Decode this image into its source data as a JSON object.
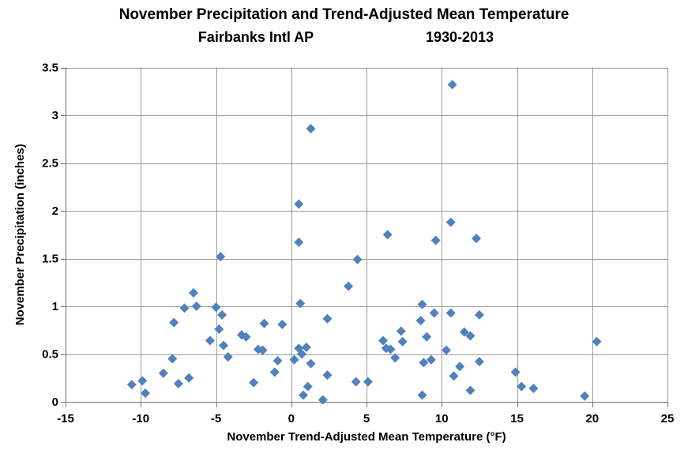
{
  "page": {
    "background": "#ffffff"
  },
  "chart_data": {
    "type": "scatter",
    "title": "November Precipitation and Trend-Adjusted Mean Temperature",
    "subtitle_location": "Fairbanks Intl AP",
    "subtitle_period": "1930-2013",
    "xlabel": "November Trend-Adjusted Mean Temperature (°F)",
    "ylabel": "November Precipitation (inches)",
    "xlim": [
      -15,
      25
    ],
    "ylim": [
      0,
      3.5
    ],
    "xticks": [
      -15,
      -10,
      -5,
      0,
      5,
      10,
      15,
      20,
      25
    ],
    "yticks": [
      0,
      0.5,
      1,
      1.5,
      2,
      2.5,
      3,
      3.5
    ],
    "grid": true,
    "legend": false,
    "marker": {
      "shape": "diamond",
      "color": "#4F81BD",
      "size": 12
    },
    "grid_color": "#9a9a9a",
    "axis_color": "#6e6e6e",
    "label_color": "#000000",
    "points": [
      [
        -10.6,
        0.18
      ],
      [
        -9.9,
        0.22
      ],
      [
        -9.7,
        0.09
      ],
      [
        -8.5,
        0.3
      ],
      [
        -7.9,
        0.45
      ],
      [
        -7.8,
        0.83
      ],
      [
        -7.5,
        0.19
      ],
      [
        -7.1,
        0.98
      ],
      [
        -6.8,
        0.25
      ],
      [
        -6.5,
        1.14
      ],
      [
        -6.3,
        1.0
      ],
      [
        -5.4,
        0.64
      ],
      [
        -5.0,
        0.99
      ],
      [
        -4.8,
        0.76
      ],
      [
        -4.7,
        1.52
      ],
      [
        -4.6,
        0.91
      ],
      [
        -4.5,
        0.59
      ],
      [
        -4.2,
        0.47
      ],
      [
        -3.3,
        0.7
      ],
      [
        -3.0,
        0.68
      ],
      [
        -2.5,
        0.2
      ],
      [
        -2.2,
        0.55
      ],
      [
        -1.9,
        0.54
      ],
      [
        -1.8,
        0.82
      ],
      [
        -1.1,
        0.31
      ],
      [
        -0.9,
        0.43
      ],
      [
        -0.6,
        0.81
      ],
      [
        0.2,
        0.44
      ],
      [
        0.5,
        2.07
      ],
      [
        0.5,
        1.67
      ],
      [
        0.5,
        0.56
      ],
      [
        0.6,
        1.03
      ],
      [
        0.7,
        0.5
      ],
      [
        0.8,
        0.07
      ],
      [
        1.0,
        0.57
      ],
      [
        1.1,
        0.16
      ],
      [
        1.3,
        2.86
      ],
      [
        1.3,
        0.4
      ],
      [
        2.1,
        0.02
      ],
      [
        2.4,
        0.87
      ],
      [
        2.4,
        0.28
      ],
      [
        3.8,
        1.21
      ],
      [
        4.3,
        0.21
      ],
      [
        4.4,
        1.49
      ],
      [
        5.1,
        0.21
      ],
      [
        6.1,
        0.64
      ],
      [
        6.3,
        0.56
      ],
      [
        6.4,
        1.75
      ],
      [
        6.6,
        0.55
      ],
      [
        6.9,
        0.46
      ],
      [
        7.3,
        0.74
      ],
      [
        7.4,
        0.63
      ],
      [
        8.6,
        0.85
      ],
      [
        8.7,
        1.02
      ],
      [
        8.7,
        0.07
      ],
      [
        8.8,
        0.41
      ],
      [
        9.0,
        0.68
      ],
      [
        9.3,
        0.44
      ],
      [
        9.5,
        0.93
      ],
      [
        9.6,
        1.69
      ],
      [
        10.3,
        0.54
      ],
      [
        10.6,
        1.88
      ],
      [
        10.6,
        0.93
      ],
      [
        10.7,
        3.32
      ],
      [
        10.8,
        0.27
      ],
      [
        11.2,
        0.37
      ],
      [
        11.5,
        0.73
      ],
      [
        11.9,
        0.69
      ],
      [
        11.9,
        0.12
      ],
      [
        12.3,
        1.71
      ],
      [
        12.5,
        0.91
      ],
      [
        12.5,
        0.42
      ],
      [
        14.9,
        0.31
      ],
      [
        15.3,
        0.16
      ],
      [
        16.1,
        0.14
      ],
      [
        19.5,
        0.06
      ],
      [
        20.3,
        0.63
      ]
    ]
  }
}
